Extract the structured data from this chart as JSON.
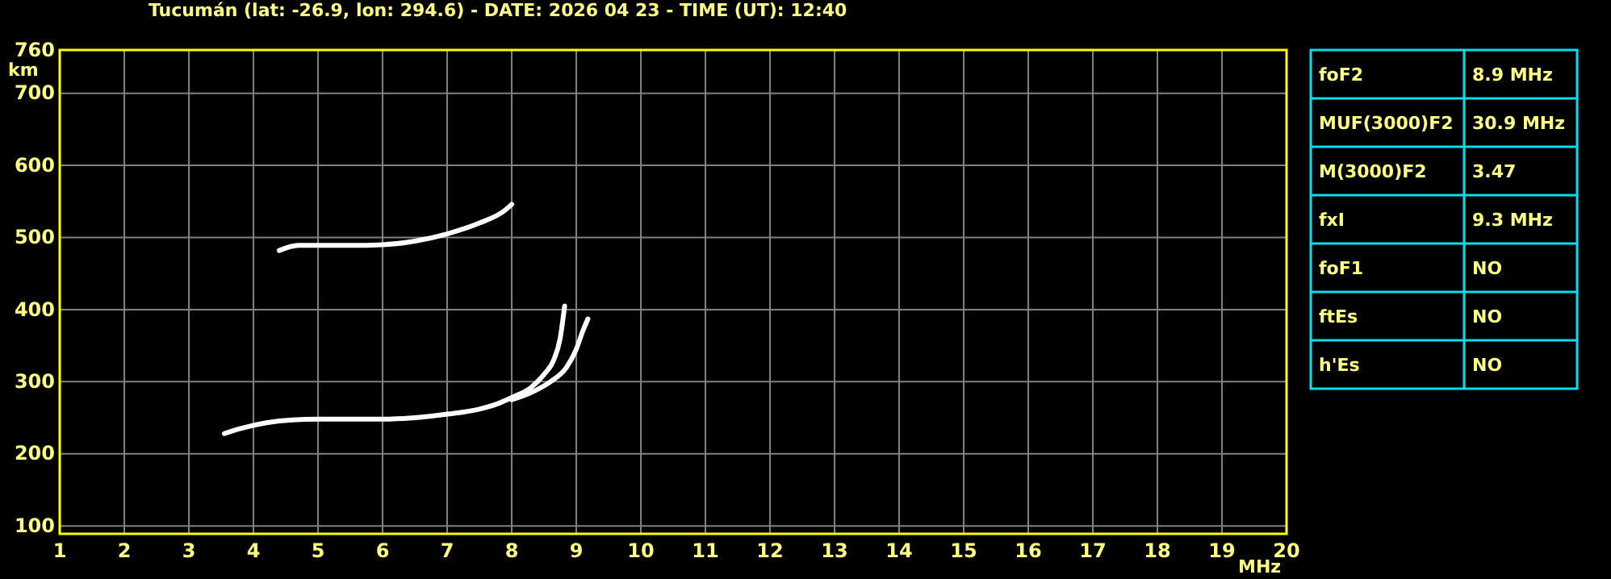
{
  "chart_data": [
    {
      "type": "line",
      "title": "Tucumán (lat: -26.9, lon: 294.6) - DATE: 2026 04 23 - TIME (UT): 12:40",
      "xlabel": "MHz",
      "ylabel": "km",
      "xlim": [
        1,
        20
      ],
      "ylim": [
        89,
        760
      ],
      "xticks": [
        1,
        2,
        3,
        4,
        5,
        6,
        7,
        8,
        9,
        10,
        11,
        12,
        13,
        14,
        15,
        16,
        17,
        18,
        19,
        20
      ],
      "yticks": [
        100,
        200,
        300,
        400,
        500,
        600,
        700,
        760
      ],
      "grid": true,
      "marker": "none",
      "line_style": "solid",
      "series": [
        {
          "color": "#ffffff",
          "x": [
            3.55,
            3.8,
            4.2,
            4.6,
            5,
            5.5,
            6,
            6.5,
            7,
            7.5,
            7.8,
            8.0,
            8.3,
            8.5,
            8.65,
            8.75,
            8.82
          ],
          "values": [
            228,
            235,
            243,
            247,
            248,
            248,
            248,
            250,
            255,
            262,
            270,
            278,
            292,
            310,
            330,
            360,
            405
          ]
        },
        {
          "color": "#ffffff",
          "x": [
            8.0,
            8.3,
            8.6,
            8.85,
            9.0,
            9.1,
            9.18
          ],
          "values": [
            275,
            285,
            300,
            320,
            345,
            370,
            387
          ]
        },
        {
          "color": "#ffffff",
          "x": [
            4.4,
            4.7,
            5,
            5.5,
            6,
            6.5,
            7,
            7.5,
            7.9,
            8.0
          ],
          "values": [
            482,
            489,
            489,
            489,
            490,
            495,
            505,
            520,
            538,
            546
          ]
        }
      ]
    },
    {
      "type": "other",
      "annotations": [
        "foF2",
        "8.9 MHz",
        "MUF(3000)F2",
        "30.9 MHz",
        "M(3000)F2",
        "3.47",
        "fxI",
        "9.3 MHz",
        "foF1",
        "NO",
        "ftEs",
        "NO",
        "h'Es",
        "NO"
      ]
    }
  ]
}
